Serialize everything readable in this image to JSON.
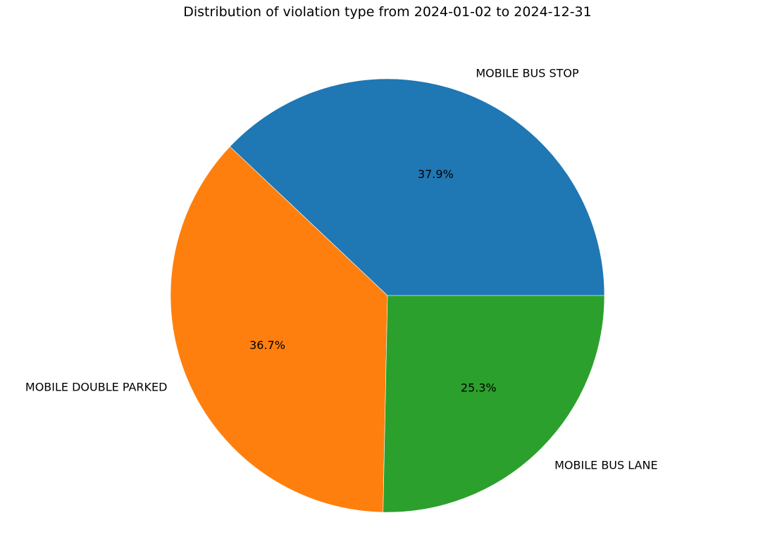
{
  "chart_data": {
    "type": "pie",
    "title": "Distribution of violation type from 2024-01-02 to 2024-12-31",
    "slices": [
      {
        "label": "MOBILE BUS STOP",
        "value": 37.9,
        "value_label": "37.9%",
        "color": "#1f77b4"
      },
      {
        "label": "MOBILE DOUBLE PARKED",
        "value": 36.7,
        "value_label": "36.7%",
        "color": "#ff7f0e"
      },
      {
        "label": "MOBILE BUS LANE",
        "value": 25.3,
        "value_label": "25.3%",
        "color": "#2ca02c"
      }
    ],
    "start_angle_deg": 0,
    "direction": "counterclockwise"
  }
}
